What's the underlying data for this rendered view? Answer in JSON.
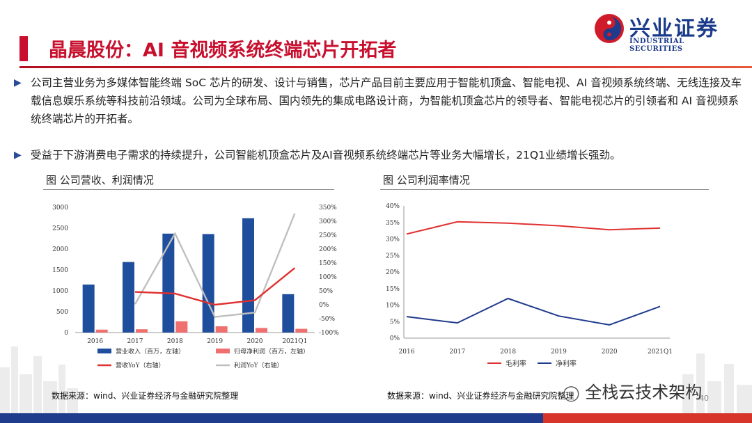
{
  "header": {
    "title": "晶晨股份：AI 音视频系统终端芯片开拓者",
    "logo_cn": "兴业证券",
    "logo_en": "INDUSTRIAL SECURITIES"
  },
  "bullets": [
    "公司主营业务为多媒体智能终端 SoC 芯片的研发、设计与销售，芯片产品目前主要应用于智能机顶盒、智能电视、AI 音视频系统终端、无线连接及车载信息娱乐系统等科技前沿领域。公司为全球布局、国内领先的集成电路设计商，为智能机顶盒芯片的领导者、智能电视芯片的引领者和 AI 音视频系统终端芯片的开拓者。",
    "受益于下游消费电子需求的持续提升，公司智能机顶盒芯片及AI音视频系统终端芯片等业务大幅增长，21Q1业绩增长强劲。"
  ],
  "figures": {
    "left_title": "图  公司营收、利润情况",
    "right_title": "图  公司利润率情况",
    "left_source": "数据来源：wind、兴业证券经济与金融研究院整理",
    "right_source": "数据来源：wind、兴业证券经济与金融研究院整理"
  },
  "watermark": "全栈云技术架构",
  "page_number": "40",
  "colors": {
    "brand_red": "#c8102e",
    "brand_blue": "#1e3b8c",
    "bar_blue": "#1f4e9c",
    "bar_red": "#f07070",
    "line_red": "#e03030",
    "line_gray": "#bfbfbf",
    "line_navy": "#203a8c"
  },
  "chart_data": [
    {
      "type": "bar",
      "categories": [
        "2016",
        "2017",
        "2018",
        "2019",
        "2020",
        "2021Q1"
      ],
      "series": [
        {
          "name": "营业收入（百万，左轴）",
          "kind": "bar",
          "axis": "left",
          "values": [
            1150,
            1690,
            2370,
            2360,
            2740,
            920
          ]
        },
        {
          "name": "归母净利润（百万，左轴）",
          "kind": "bar",
          "axis": "left",
          "values": [
            70,
            80,
            270,
            150,
            110,
            90
          ]
        },
        {
          "name": "营收YoY（右轴）",
          "kind": "line",
          "axis": "right",
          "values": [
            null,
            46,
            40,
            0,
            16,
            132
          ]
        },
        {
          "name": "利润YoY（右轴）",
          "kind": "line",
          "axis": "right",
          "values": [
            null,
            2,
            256,
            -44,
            -28,
            328
          ]
        }
      ],
      "yticks_left": [
        "0",
        "500",
        "1000",
        "1500",
        "2000",
        "2500",
        "3000"
      ],
      "ylim_left": [
        0,
        3000
      ],
      "yticks_right": [
        "-100%",
        "-50%",
        "0%",
        "50%",
        "100%",
        "150%",
        "200%",
        "250%",
        "300%",
        "350%"
      ],
      "ylim_right": [
        -100,
        350
      ],
      "legend_placement": "bottom"
    },
    {
      "type": "line",
      "categories": [
        "2016",
        "2017",
        "2018",
        "2019",
        "2020",
        "2021Q1"
      ],
      "series": [
        {
          "name": "毛利率",
          "values": [
            31.5,
            35.2,
            34.8,
            34.0,
            32.8,
            33.3
          ]
        },
        {
          "name": "净利率",
          "values": [
            6.5,
            4.6,
            12.0,
            6.7,
            4.0,
            9.6
          ]
        }
      ],
      "yticks": [
        "0%",
        "5%",
        "10%",
        "15%",
        "20%",
        "25%",
        "30%",
        "35%",
        "40%"
      ],
      "ylim": [
        0,
        40
      ],
      "legend_placement": "bottom"
    }
  ]
}
